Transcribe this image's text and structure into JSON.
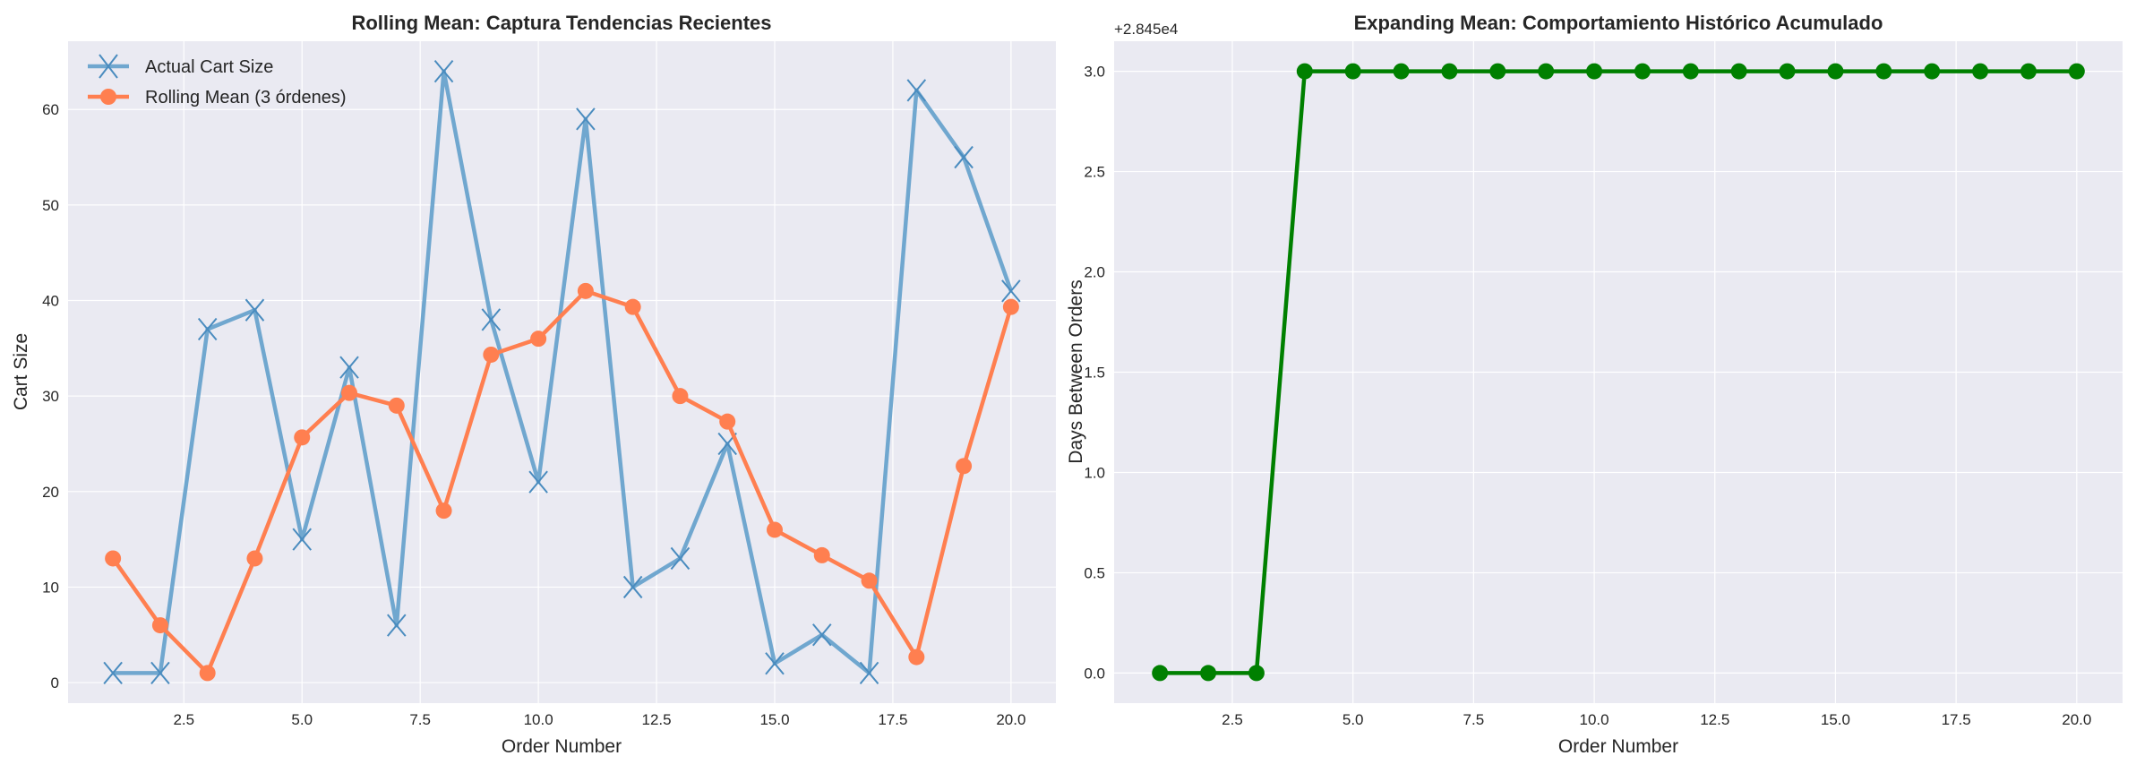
{
  "chart_data": [
    {
      "type": "line",
      "title": "Rolling Mean: Captura Tendencias Recientes",
      "xlabel": "Order Number",
      "ylabel": "Cart Size",
      "xlim": [
        0.05,
        20.95
      ],
      "ylim": [
        -2.15,
        67.15
      ],
      "xticks": [
        2.5,
        5.0,
        7.5,
        10.0,
        12.5,
        15.0,
        17.5,
        20.0
      ],
      "xtick_labels": [
        "2.5",
        "5.0",
        "7.5",
        "10.0",
        "12.5",
        "15.0",
        "17.5",
        "20.0"
      ],
      "yticks": [
        0,
        10,
        20,
        30,
        40,
        50,
        60
      ],
      "ytick_labels": [
        "0",
        "10",
        "20",
        "30",
        "40",
        "50",
        "60"
      ],
      "grid": true,
      "legend_position": "top-left",
      "x": [
        1,
        2,
        3,
        4,
        5,
        6,
        7,
        8,
        9,
        10,
        11,
        12,
        13,
        14,
        15,
        16,
        17,
        18,
        19,
        20
      ],
      "series": [
        {
          "name": "Actual Cart Size",
          "color": "#5b9bc9",
          "marker": "x",
          "values": [
            1,
            1,
            37,
            39,
            15,
            33,
            6,
            64,
            38,
            21,
            59,
            10,
            13,
            25,
            2,
            5,
            1,
            62,
            55,
            41
          ]
        },
        {
          "name": "Rolling Mean (3 órdenes)",
          "color": "#ff7f50",
          "marker": "o",
          "values": [
            13,
            6,
            1,
            13,
            25.67,
            30.33,
            29,
            18,
            34.33,
            36,
            41,
            39.33,
            30,
            27.33,
            16,
            13.33,
            10.67,
            2.67,
            22.67,
            39.33
          ]
        }
      ]
    },
    {
      "type": "line",
      "title": "Expanding Mean: Comportamiento Histórico Acumulado",
      "xlabel": "Order Number",
      "ylabel": "Days Between Orders",
      "offset_text": "+2.845e4",
      "xlim": [
        0.05,
        20.95
      ],
      "ylim": [
        -0.15,
        3.15
      ],
      "xticks": [
        2.5,
        5.0,
        7.5,
        10.0,
        12.5,
        15.0,
        17.5,
        20.0
      ],
      "xtick_labels": [
        "2.5",
        "5.0",
        "7.5",
        "10.0",
        "12.5",
        "15.0",
        "17.5",
        "20.0"
      ],
      "yticks": [
        0,
        0.5,
        1,
        1.5,
        2,
        2.5,
        3
      ],
      "ytick_labels": [
        "0.0",
        "0.5",
        "1.0",
        "1.5",
        "2.0",
        "2.5",
        "3.0"
      ],
      "grid": true,
      "x": [
        1,
        2,
        3,
        4,
        5,
        6,
        7,
        8,
        9,
        10,
        11,
        12,
        13,
        14,
        15,
        16,
        17,
        18,
        19,
        20
      ],
      "series": [
        {
          "name": "Expanding Mean",
          "color": "#008000",
          "marker": "o",
          "values": [
            0,
            0,
            0,
            3,
            3,
            3,
            3,
            3,
            3,
            3,
            3,
            3,
            3,
            3,
            3,
            3,
            3,
            3,
            3,
            3
          ]
        }
      ]
    }
  ]
}
